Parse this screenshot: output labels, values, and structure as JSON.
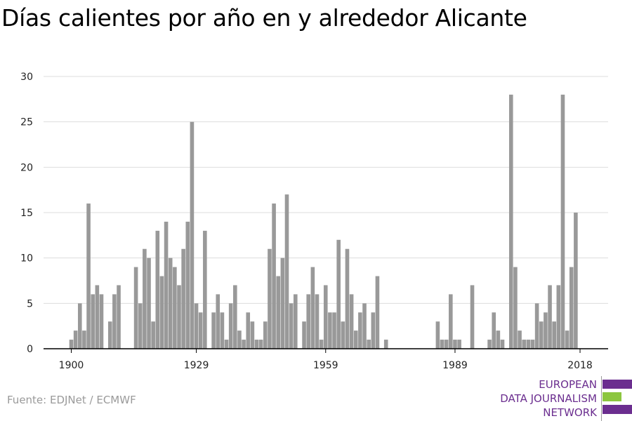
{
  "title": "Días calientes por año en y alrededor Alicante",
  "source": "Fuente: EDJNet / ECMWF",
  "logo": {
    "lines": [
      "EUROPEAN",
      "DATA JOURNALISM",
      "NETWORK"
    ],
    "colors": {
      "purple": "#6b2e8f",
      "green": "#8cc63f"
    }
  },
  "colors": {
    "bar": "#999999",
    "grid": "#dddddd",
    "axis": "#000000"
  },
  "chart_data": {
    "type": "bar",
    "title": "Días calientes por año en y alrededor Alicante",
    "xlabel": "",
    "ylabel": "",
    "x_ticks": [
      1900,
      1929,
      1959,
      1989,
      2018
    ],
    "y_ticks": [
      0,
      5,
      10,
      15,
      20,
      25,
      30
    ],
    "ylim": [
      0,
      30
    ],
    "grid": true,
    "categories": [
      1900,
      1901,
      1902,
      1903,
      1904,
      1905,
      1906,
      1907,
      1908,
      1909,
      1910,
      1911,
      1912,
      1913,
      1914,
      1915,
      1916,
      1917,
      1918,
      1919,
      1920,
      1921,
      1922,
      1923,
      1924,
      1925,
      1926,
      1927,
      1928,
      1929,
      1930,
      1931,
      1932,
      1933,
      1934,
      1935,
      1936,
      1937,
      1938,
      1939,
      1940,
      1941,
      1942,
      1943,
      1944,
      1945,
      1946,
      1947,
      1948,
      1949,
      1950,
      1951,
      1952,
      1953,
      1954,
      1955,
      1956,
      1957,
      1958,
      1959,
      1960,
      1961,
      1962,
      1963,
      1964,
      1965,
      1966,
      1967,
      1968,
      1969,
      1970,
      1971,
      1972,
      1973,
      1974,
      1975,
      1976,
      1977,
      1978,
      1979,
      1980,
      1981,
      1982,
      1983,
      1984,
      1985,
      1986,
      1987,
      1988,
      1989,
      1990,
      1991,
      1992,
      1993,
      1994,
      1995,
      1996,
      1997,
      1998,
      1999,
      2000,
      2001,
      2002,
      2003,
      2004,
      2005,
      2006,
      2007,
      2008,
      2009,
      2010,
      2011,
      2012,
      2013,
      2014,
      2015,
      2016,
      2017,
      2018
    ],
    "values": [
      1,
      2,
      5,
      2,
      16,
      6,
      7,
      6,
      0,
      3,
      6,
      7,
      0,
      0,
      0,
      9,
      5,
      11,
      10,
      3,
      13,
      8,
      14,
      10,
      9,
      7,
      11,
      14,
      25,
      5,
      4,
      13,
      0,
      4,
      6,
      4,
      1,
      5,
      7,
      2,
      1,
      4,
      3,
      1,
      1,
      3,
      11,
      16,
      8,
      10,
      17,
      5,
      6,
      0,
      3,
      6,
      9,
      6,
      1,
      7,
      4,
      4,
      12,
      3,
      11,
      6,
      2,
      4,
      5,
      1,
      4,
      8,
      0,
      1,
      0,
      0,
      0,
      0,
      0,
      0,
      0,
      0,
      0,
      0,
      0,
      3,
      1,
      1,
      6,
      1,
      1,
      0,
      0,
      7,
      0,
      0,
      0,
      1,
      4,
      2,
      1,
      0,
      28,
      9,
      2,
      1,
      1,
      1,
      5,
      3,
      4,
      7,
      3,
      7,
      28,
      2,
      9,
      15,
      0
    ]
  }
}
